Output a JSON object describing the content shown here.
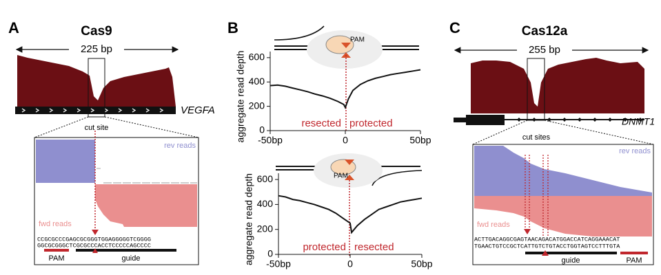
{
  "panel_a": {
    "label": "A",
    "title": "Cas9",
    "span": "225 bp",
    "gene": "VEGFA",
    "cut_label": "cut site",
    "rev_label": "rev reads",
    "fwd_label": "fwd reads",
    "seq_top": "CCGCGCCCGAGCGCGGGTGGAGGGGGTCGGGG",
    "seq_bottom": "GGCGCGGGCTCGCGCCCACCTCCCCCAGCCCC",
    "pam": "PAM",
    "guide": "guide"
  },
  "panel_b": {
    "label": "B"
  },
  "chart_data": [
    {
      "type": "line",
      "ylabel": "aggregate read depth",
      "annotations": [
        "resected",
        "protected"
      ],
      "pam": "PAM",
      "x": [
        -50,
        -45,
        -40,
        -35,
        -30,
        -25,
        -20,
        -15,
        -10,
        -5,
        -1,
        0,
        2,
        5,
        10,
        15,
        20,
        25,
        30,
        35,
        40,
        45,
        50
      ],
      "series": [
        {
          "color": "#111111",
          "values": [
            370,
            375,
            365,
            350,
            335,
            320,
            300,
            285,
            265,
            240,
            215,
            190,
            260,
            330,
            380,
            410,
            430,
            445,
            460,
            470,
            480,
            490,
            500
          ]
        }
      ],
      "xlim": [
        -50,
        50
      ],
      "xticks": [
        {
          "value": -50,
          "label": "-50bp"
        },
        0,
        {
          "value": 50,
          "label": "50bp"
        }
      ],
      "ylim": [
        0,
        650
      ],
      "yticks": [
        0,
        200,
        400,
        600
      ]
    },
    {
      "type": "line",
      "ylabel": "aggregate read depth",
      "annotations": [
        "protected",
        "resected"
      ],
      "pam": "PAM",
      "x": [
        -50,
        -45,
        -40,
        -35,
        -30,
        -25,
        -20,
        -15,
        -10,
        -5,
        0,
        1,
        5,
        10,
        15,
        20,
        25,
        30,
        35,
        40,
        45,
        50
      ],
      "series": [
        {
          "color": "#111111",
          "values": [
            470,
            460,
            440,
            430,
            415,
            400,
            380,
            360,
            330,
            290,
            250,
            175,
            230,
            280,
            320,
            360,
            380,
            400,
            420,
            430,
            440,
            450
          ]
        }
      ],
      "xlim": [
        -50,
        50
      ],
      "xticks": [
        {
          "value": -50,
          "label": "-50bp"
        },
        0,
        {
          "value": 50,
          "label": "50bp"
        }
      ],
      "ylim": [
        0,
        650
      ],
      "yticks": [
        0,
        200,
        400,
        600
      ]
    }
  ],
  "panel_c": {
    "label": "C",
    "title": "Cas12a",
    "span": "255 bp",
    "gene": "DNMT1",
    "cut_label": "cut sites",
    "rev_label": "rev reads",
    "fwd_label": "fwd reads",
    "seq_top": "ACTTGACAGGCGAGTAACAGACATGGACCATCAGGAAACAT",
    "seq_bottom": "TGAACTGTCCGCTCATTGTCTGTACCTGGTAGTCCTTTGTA",
    "guide": "guide",
    "pam": "PAM"
  }
}
